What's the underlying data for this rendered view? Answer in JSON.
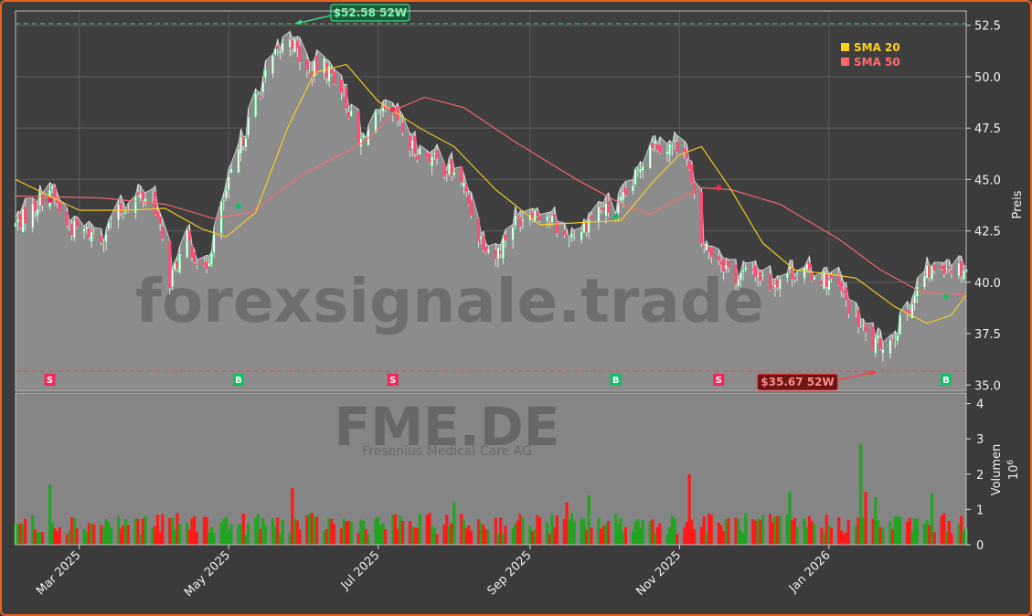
{
  "chart_data": {
    "type": "candlestick",
    "ticker": "FME.DE",
    "watermark": "forexsignale.trade",
    "company": "Fresenius Medical Care AG",
    "x_start": "2025-02-03",
    "x_end": "2026-02-26",
    "x_ticks": [
      {
        "date": "2025-03-01",
        "label": "Mar 2025"
      },
      {
        "date": "2025-05-01",
        "label": "May 2025"
      },
      {
        "date": "2025-07-01",
        "label": "Jul 2025"
      },
      {
        "date": "2025-09-01",
        "label": "Sep 2025"
      },
      {
        "date": "2025-11-01",
        "label": "Nov 2025"
      },
      {
        "date": "2026-01-01",
        "label": "Jan 2026"
      }
    ],
    "price_panel": {
      "ylabel": "Preis",
      "ylim": [
        34.7,
        53.2
      ],
      "y_ticks": [
        35.0,
        37.5,
        40.0,
        42.5,
        45.0,
        47.5,
        50.0,
        52.5
      ],
      "y_tick_labels": [
        "35.0",
        "37.5",
        "40.0",
        "42.5",
        "45.0",
        "47.5",
        "50.0",
        "52.5"
      ],
      "grid": true,
      "close_anchors": [
        [
          "2025-02-03",
          42.8
        ],
        [
          "2025-02-10",
          43.6
        ],
        [
          "2025-02-17",
          44.6
        ],
        [
          "2025-02-24",
          42.7
        ],
        [
          "2025-03-03",
          42.5
        ],
        [
          "2025-03-10",
          42.2
        ],
        [
          "2025-03-17",
          43.4
        ],
        [
          "2025-03-24",
          44.1
        ],
        [
          "2025-03-31",
          44.3
        ],
        [
          "2025-04-07",
          40.1
        ],
        [
          "2025-04-14",
          42.1
        ],
        [
          "2025-04-21",
          40.4
        ],
        [
          "2025-04-28",
          43.6
        ],
        [
          "2025-05-05",
          46.3
        ],
        [
          "2025-05-12",
          48.9
        ],
        [
          "2025-05-19",
          50.8
        ],
        [
          "2025-05-26",
          52.0
        ],
        [
          "2025-06-02",
          50.2
        ],
        [
          "2025-06-09",
          50.5
        ],
        [
          "2025-06-16",
          49.6
        ],
        [
          "2025-06-23",
          46.7
        ],
        [
          "2025-06-30",
          47.9
        ],
        [
          "2025-07-07",
          48.3
        ],
        [
          "2025-07-14",
          46.6
        ],
        [
          "2025-07-21",
          46.2
        ],
        [
          "2025-07-28",
          45.6
        ],
        [
          "2025-08-04",
          45.0
        ],
        [
          "2025-08-11",
          42.3
        ],
        [
          "2025-08-18",
          41.3
        ],
        [
          "2025-08-25",
          42.9
        ],
        [
          "2025-09-01",
          43.5
        ],
        [
          "2025-09-08",
          43.3
        ],
        [
          "2025-09-15",
          42.2
        ],
        [
          "2025-09-22",
          42.6
        ],
        [
          "2025-09-29",
          43.6
        ],
        [
          "2025-10-06",
          43.4
        ],
        [
          "2025-10-13",
          44.8
        ],
        [
          "2025-10-20",
          46.9
        ],
        [
          "2025-10-27",
          46.6
        ],
        [
          "2025-11-03",
          46.7
        ],
        [
          "2025-11-10",
          41.9
        ],
        [
          "2025-11-17",
          41.2
        ],
        [
          "2025-11-24",
          40.2
        ],
        [
          "2025-12-01",
          40.6
        ],
        [
          "2025-12-08",
          39.9
        ],
        [
          "2025-12-15",
          40.5
        ],
        [
          "2025-12-22",
          40.5
        ],
        [
          "2025-12-29",
          40.3
        ],
        [
          "2026-01-05",
          39.7
        ],
        [
          "2026-01-12",
          38.2
        ],
        [
          "2026-01-19",
          36.9
        ],
        [
          "2026-01-26",
          37.2
        ],
        [
          "2026-02-02",
          38.6
        ],
        [
          "2026-02-09",
          40.3
        ],
        [
          "2026-02-16",
          40.9
        ],
        [
          "2026-02-23",
          40.7
        ]
      ],
      "sma20": [
        [
          "2025-02-03",
          45.0
        ],
        [
          "2025-03-01",
          43.5
        ],
        [
          "2025-03-20",
          43.5
        ],
        [
          "2025-04-05",
          43.6
        ],
        [
          "2025-04-20",
          42.6
        ],
        [
          "2025-04-30",
          42.2
        ],
        [
          "2025-05-12",
          43.4
        ],
        [
          "2025-05-25",
          47.5
        ],
        [
          "2025-06-05",
          50.2
        ],
        [
          "2025-06-18",
          50.6
        ],
        [
          "2025-07-01",
          48.8
        ],
        [
          "2025-07-18",
          47.5
        ],
        [
          "2025-08-01",
          46.6
        ],
        [
          "2025-08-18",
          44.5
        ],
        [
          "2025-09-05",
          42.8
        ],
        [
          "2025-09-22",
          42.9
        ],
        [
          "2025-10-08",
          43.0
        ],
        [
          "2025-10-22",
          45.0
        ],
        [
          "2025-11-01",
          46.2
        ],
        [
          "2025-11-10",
          46.6
        ],
        [
          "2025-11-22",
          44.5
        ],
        [
          "2025-12-05",
          41.9
        ],
        [
          "2025-12-18",
          40.6
        ],
        [
          "2026-01-01",
          40.4
        ],
        [
          "2026-01-12",
          40.2
        ],
        [
          "2026-01-28",
          38.8
        ],
        [
          "2026-02-10",
          38.0
        ],
        [
          "2026-02-20",
          38.4
        ],
        [
          "2026-02-26",
          39.4
        ]
      ],
      "sma50": [
        [
          "2025-02-03",
          44.2
        ],
        [
          "2025-03-10",
          44.1
        ],
        [
          "2025-04-05",
          43.8
        ],
        [
          "2025-04-25",
          43.1
        ],
        [
          "2025-05-10",
          43.4
        ],
        [
          "2025-06-01",
          45.3
        ],
        [
          "2025-06-25",
          46.8
        ],
        [
          "2025-07-10",
          48.5
        ],
        [
          "2025-07-20",
          49.0
        ],
        [
          "2025-08-05",
          48.5
        ],
        [
          "2025-08-25",
          46.9
        ],
        [
          "2025-09-20",
          45.0
        ],
        [
          "2025-10-10",
          43.7
        ],
        [
          "2025-10-20",
          43.3
        ],
        [
          "2025-11-01",
          44.1
        ],
        [
          "2025-11-10",
          44.6
        ],
        [
          "2025-11-22",
          44.5
        ],
        [
          "2025-12-12",
          43.8
        ],
        [
          "2026-01-05",
          42.1
        ],
        [
          "2026-01-22",
          40.6
        ],
        [
          "2026-02-08",
          39.5
        ],
        [
          "2026-02-26",
          39.4
        ]
      ],
      "high_52w": {
        "value": 52.58,
        "label": "$52.58 52W",
        "date": "2025-05-27"
      },
      "low_52w": {
        "value": 35.67,
        "label": "$35.67 52W",
        "date": "2026-01-21"
      },
      "signals": [
        {
          "date": "2025-02-17",
          "type": "S",
          "price": 44.0
        },
        {
          "date": "2025-05-05",
          "type": "B",
          "price": 43.7
        },
        {
          "date": "2025-07-07",
          "type": "S",
          "price": 48.4
        },
        {
          "date": "2025-10-06",
          "type": "B",
          "price": 43.2
        },
        {
          "date": "2025-11-17",
          "type": "S",
          "price": 44.6
        },
        {
          "date": "2026-02-26",
          "type": "B",
          "price": 39.3
        }
      ],
      "legend": [
        {
          "label": "SMA 20",
          "color": "#ffd21f"
        },
        {
          "label": "SMA 50",
          "color": "#ff6b6b"
        }
      ],
      "legend_position": "top-right"
    },
    "volume_panel": {
      "ylabel": "Volumen",
      "unit_label": "10",
      "unit_exponent": "6",
      "ylim": [
        0,
        4.3
      ],
      "y_ticks": [
        0,
        1,
        2,
        3,
        4
      ],
      "y_tick_labels": [
        "0",
        "1",
        "2",
        "3",
        "4"
      ],
      "spikes": [
        {
          "date": "2025-02-17",
          "value": 1.7
        },
        {
          "date": "2025-05-27",
          "value": 1.6
        },
        {
          "date": "2025-08-01",
          "value": 1.2
        },
        {
          "date": "2025-09-16",
          "value": 1.2
        },
        {
          "date": "2025-09-25",
          "value": 1.4
        },
        {
          "date": "2025-11-05",
          "value": 2.0
        },
        {
          "date": "2025-12-16",
          "value": 1.5
        },
        {
          "date": "2026-01-14",
          "value": 2.85
        },
        {
          "date": "2026-01-16",
          "value": 1.5
        },
        {
          "date": "2026-01-20",
          "value": 1.35
        },
        {
          "date": "2026-02-12",
          "value": 1.45
        }
      ]
    },
    "colors": {
      "up": "#22a422",
      "down": "#ff1a1a",
      "price_area": "#8c8c8c",
      "candle_up": "#3cd070",
      "candle_down": "#ff4d73",
      "high_line": "#3ddc84",
      "low_line": "#ff3b3b"
    }
  }
}
